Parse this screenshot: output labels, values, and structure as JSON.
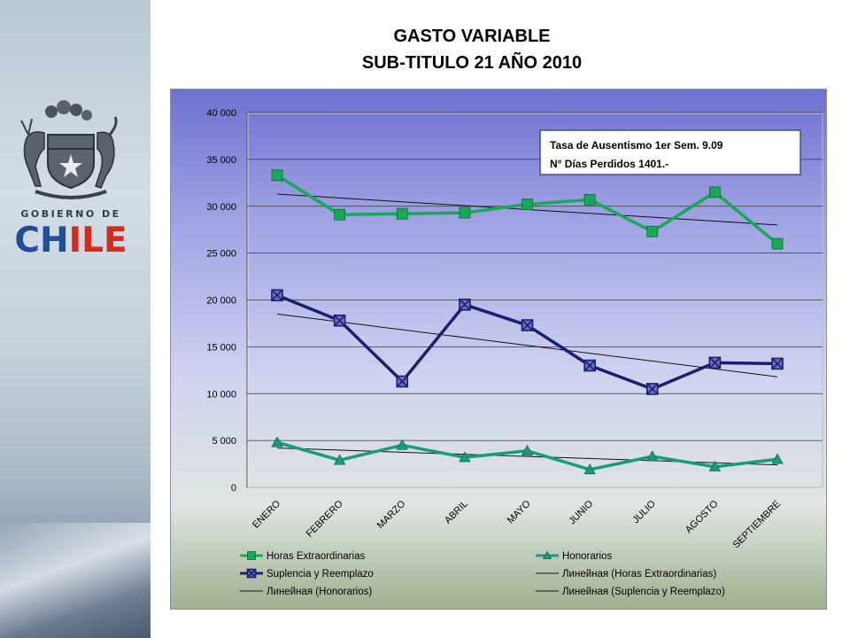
{
  "header": {
    "title_line1": "GASTO VARIABLE",
    "title_line2": "SUB-TITULO 21 AÑO 2010"
  },
  "logo": {
    "top_text": "GOBIERNO DE",
    "main_text": "CHILE",
    "colors": {
      "blue": "#1f4f9c",
      "red": "#d52b1e"
    }
  },
  "note": {
    "line1": "Tasa de Ausentismo 1er Sem.    9.09",
    "line2": "N° Días Perdidos   1401.-"
  },
  "chart_data": {
    "type": "line",
    "categories": [
      "ENERO",
      "FEBRERO",
      "MARZO",
      "ABRIL",
      "MAYO",
      "JUNIO",
      "JULIO",
      "AGOSTO",
      "SEPTIEMBRE"
    ],
    "y_ticks": [
      "0",
      "5 000",
      "10 000",
      "15 000",
      "20 000",
      "25 000",
      "30 000",
      "35 000",
      "40 000"
    ],
    "ylim": [
      0,
      40000
    ],
    "grid": true,
    "legend_placement": "bottom",
    "series": [
      {
        "name": "Horas Extraordinarias",
        "values": [
          33300,
          29100,
          29200,
          29300,
          30200,
          30700,
          27300,
          31500,
          26000
        ],
        "color": "#17a858",
        "marker": "square"
      },
      {
        "name": "Honorarios",
        "values": [
          4800,
          2900,
          4500,
          3200,
          3900,
          1900,
          3300,
          2200,
          3000
        ],
        "color": "#1a9c7a",
        "marker": "triangle"
      },
      {
        "name": "Suplencia y Reemplazo",
        "values": [
          20500,
          17800,
          11300,
          19500,
          17300,
          13000,
          10500,
          13300,
          13200
        ],
        "color": "#1c1e6e",
        "marker": "square-x"
      }
    ],
    "trendlines": [
      {
        "name": "Линейная (Horas Extraordinarias)",
        "from": 31300,
        "to": 28000
      },
      {
        "name": "Линейная (Honorarios)",
        "from": 4200,
        "to": 2400
      },
      {
        "name": "Линейная (Suplencia y Reemplazo)",
        "from": 18500,
        "to": 11800
      }
    ],
    "legend": [
      {
        "label": "Horas Extraordinarias",
        "kind": "series",
        "ref": 0
      },
      {
        "label": "Honorarios",
        "kind": "series",
        "ref": 1
      },
      {
        "label": "Suplencia y Reemplazo",
        "kind": "series",
        "ref": 2
      },
      {
        "label": "Линейная (Horas Extraordinarias)",
        "kind": "trend"
      },
      {
        "label": "Линейная (Honorarios)",
        "kind": "trend"
      },
      {
        "label": "Линейная (Suplencia y Reemplazo)",
        "kind": "trend"
      }
    ]
  }
}
